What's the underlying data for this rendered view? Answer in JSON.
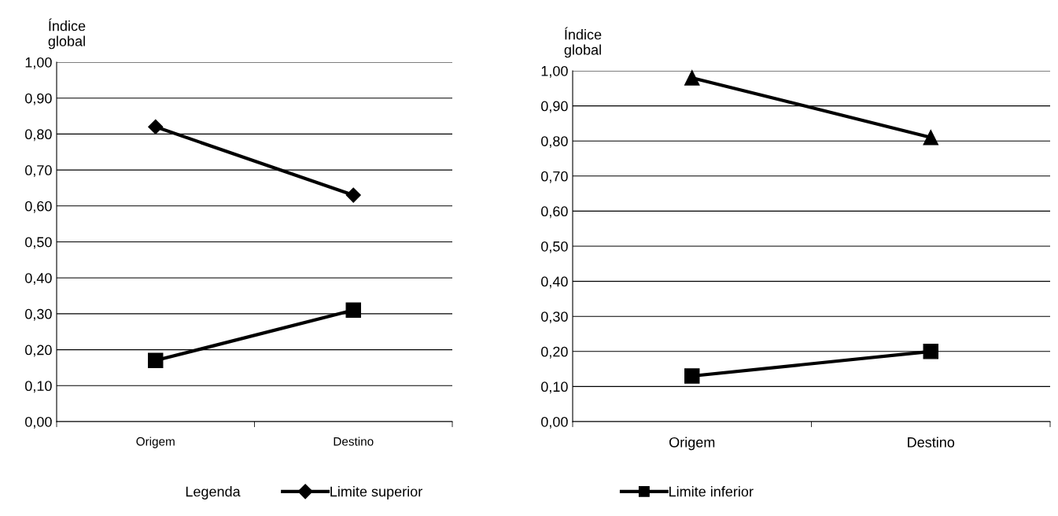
{
  "chart_data": [
    {
      "type": "line",
      "ylabel": "Índice\nglobal",
      "categories": [
        "Origem",
        "Destino"
      ],
      "ylim": [
        0,
        1
      ],
      "yticks": [
        {
          "value": 0,
          "label": "0,00"
        },
        {
          "value": 0.1,
          "label": "0,10"
        },
        {
          "value": 0.2,
          "label": "0,20"
        },
        {
          "value": 0.3,
          "label": "0,30"
        },
        {
          "value": 0.4,
          "label": "0,40"
        },
        {
          "value": 0.5,
          "label": "0,50"
        },
        {
          "value": 0.6,
          "label": "0,60"
        },
        {
          "value": 0.7,
          "label": "0,70"
        },
        {
          "value": 0.8,
          "label": "0,80"
        },
        {
          "value": 0.9,
          "label": "0,90"
        },
        {
          "value": 1,
          "label": "1,00"
        }
      ],
      "grid": "y",
      "legend": "bottom",
      "legend_title": "Legenda",
      "line_style": "solid",
      "series": [
        {
          "name": "Limite superior",
          "color": "#000000",
          "marker": "diamond",
          "values": [
            0.82,
            0.63
          ]
        },
        {
          "name": "Limite inferior",
          "color": "#000000",
          "marker": "square",
          "values": [
            0.17,
            0.31
          ]
        }
      ]
    },
    {
      "type": "line",
      "ylabel": "Índice\nglobal",
      "categories": [
        "Origem",
        "Destino"
      ],
      "ylim": [
        0,
        1
      ],
      "yticks": [
        {
          "value": 0,
          "label": "0,00"
        },
        {
          "value": 0.1,
          "label": "0,10"
        },
        {
          "value": 0.2,
          "label": "0,20"
        },
        {
          "value": 0.3,
          "label": "0,30"
        },
        {
          "value": 0.4,
          "label": "0,40"
        },
        {
          "value": 0.5,
          "label": "0,50"
        },
        {
          "value": 0.6,
          "label": "0,60"
        },
        {
          "value": 0.7,
          "label": "0,70"
        },
        {
          "value": 0.8,
          "label": "0,80"
        },
        {
          "value": 0.9,
          "label": "0,90"
        },
        {
          "value": 1,
          "label": "1,00"
        }
      ],
      "grid": "y",
      "line_style": "solid",
      "series": [
        {
          "color": "#000000",
          "marker": "triangle",
          "values": [
            0.98,
            0.81
          ]
        },
        {
          "color": "#000000",
          "marker": "square",
          "values": [
            0.13,
            0.2
          ]
        }
      ]
    }
  ]
}
